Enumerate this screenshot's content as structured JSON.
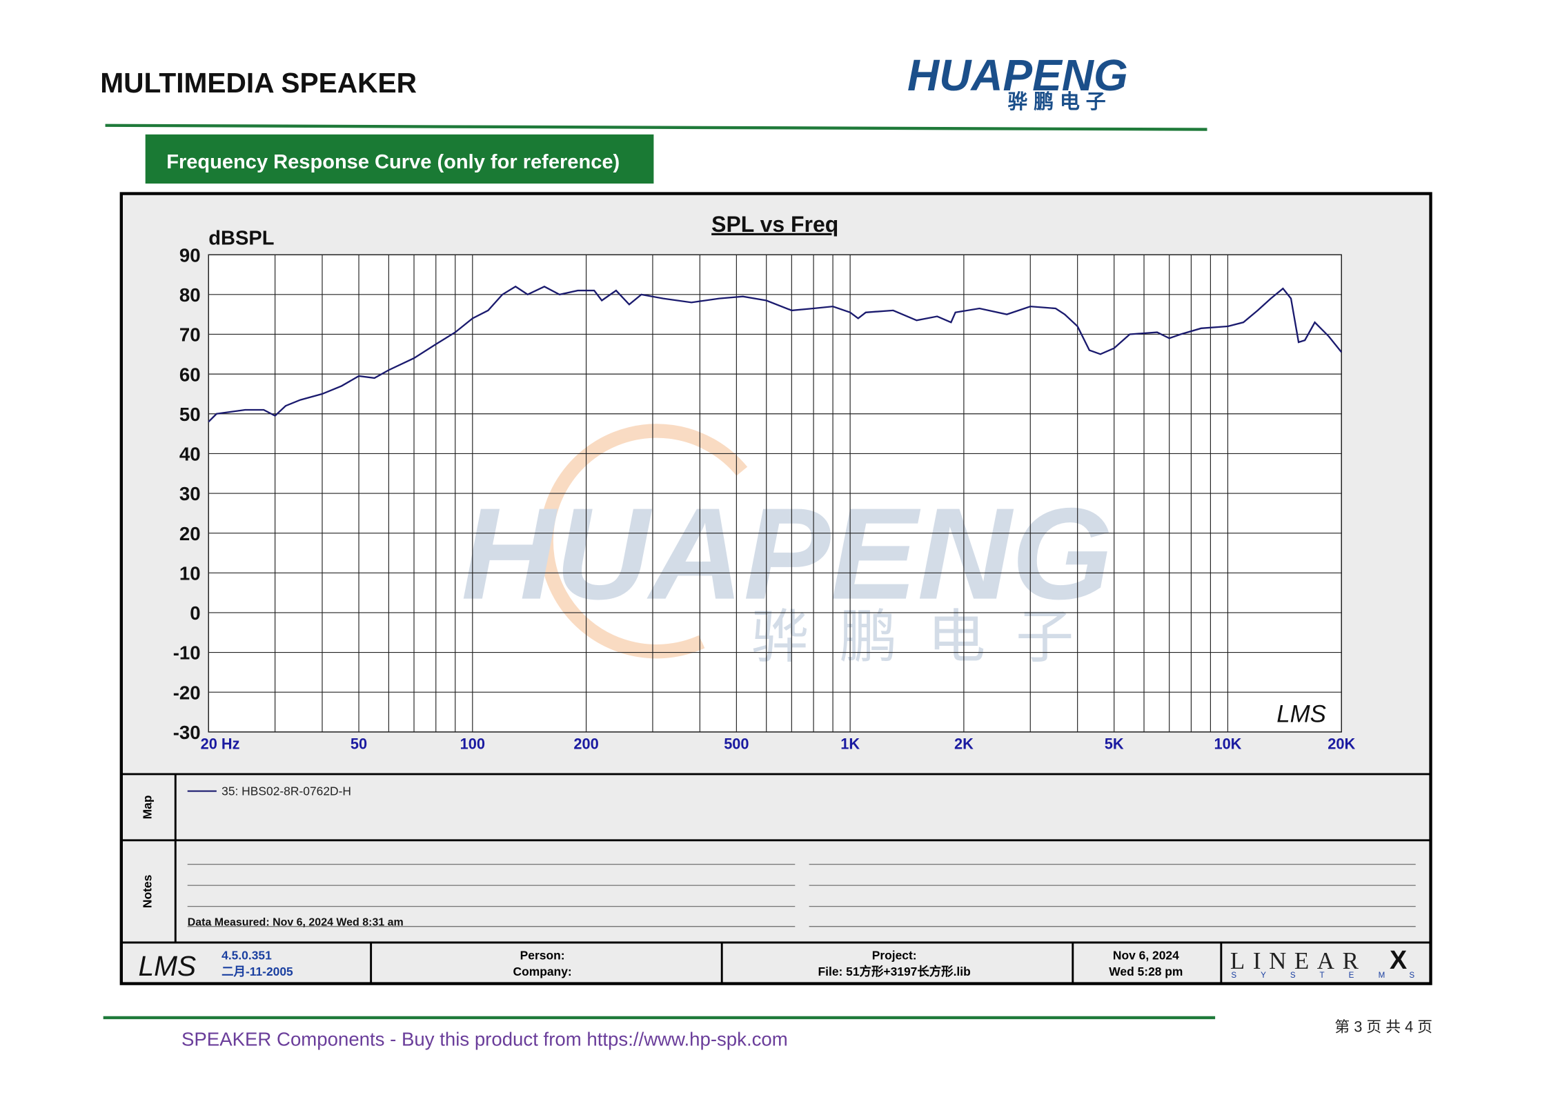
{
  "header": {
    "title": "MULTIMEDIA SPEAKER",
    "logo": "HUAPENG",
    "logo_cn": "骅鹏电子"
  },
  "section_label": "Frequency Response Curve (only for reference)",
  "chart_data": {
    "type": "line",
    "title": "SPL vs Freq",
    "y_label": "dBSPL",
    "x_scale": "log",
    "grid": true,
    "xlim": [
      20,
      20000
    ],
    "ylim": [
      -30,
      90
    ],
    "xticks": [
      {
        "value": 20,
        "label": "20  Hz"
      },
      50,
      100,
      200,
      500,
      {
        "value": 1000,
        "label": "1K"
      },
      {
        "value": 2000,
        "label": "2K"
      },
      {
        "value": 5000,
        "label": "5K"
      },
      {
        "value": 10000,
        "label": "10K"
      },
      {
        "value": 20000,
        "label": "20K"
      }
    ],
    "xminorticks": [
      30,
      40,
      60,
      70,
      80,
      90,
      300,
      400,
      600,
      700,
      800,
      900,
      3000,
      4000,
      6000,
      7000,
      8000,
      9000
    ],
    "yticks": [
      90,
      80,
      70,
      60,
      50,
      40,
      30,
      20,
      10,
      0,
      -10,
      -20,
      -30
    ],
    "x": [
      20,
      21,
      25,
      28,
      30,
      32,
      35,
      40,
      45,
      50,
      55,
      60,
      70,
      80,
      90,
      100,
      110,
      120,
      130,
      140,
      155,
      170,
      190,
      210,
      220,
      240,
      260,
      280,
      320,
      380,
      450,
      520,
      600,
      700,
      800,
      900,
      1000,
      1050,
      1100,
      1300,
      1500,
      1700,
      1850,
      1900,
      2200,
      2600,
      3000,
      3500,
      3700,
      4000,
      4300,
      4600,
      5000,
      5500,
      6500,
      7000,
      7500,
      8500,
      10000,
      11000,
      12000,
      13000,
      14000,
      14700,
      15400,
      16000,
      17000,
      18500,
      20000
    ],
    "series": [
      {
        "name": "35: HBS02-8R-0762D-H",
        "color": "#1a1a6e",
        "values": [
          48,
          50,
          51,
          51,
          49.5,
          52,
          53.5,
          55,
          57,
          59.5,
          59,
          61,
          64,
          67.5,
          70.5,
          74,
          76,
          80,
          82,
          80,
          82,
          80,
          81,
          81,
          78.5,
          81,
          77.5,
          80,
          79,
          78,
          79,
          79.5,
          78.5,
          76,
          76.5,
          77,
          75.5,
          74,
          75.5,
          76,
          73.5,
          74.5,
          73,
          75.5,
          76.5,
          75,
          77,
          76.5,
          75,
          72,
          66,
          65,
          66.5,
          70,
          70.5,
          69,
          70,
          71.5,
          72,
          73,
          76,
          79,
          81.5,
          79,
          68,
          68.5,
          73,
          69.5,
          65.5
        ]
      }
    ],
    "watermark": "HUAPENG",
    "watermark_cn": "骅鹏电子",
    "plot_logo": "LMS"
  },
  "map": {
    "label": "Map"
  },
  "notes": {
    "label": "Notes",
    "measured": "Data Measured: Nov  6, 2024  Wed  8:31 am"
  },
  "info_bar": {
    "logo": "LMS",
    "version": "4.5.0.351",
    "build_date": "二月-11-2005",
    "person": "Person:",
    "company": "Company:",
    "project": "Project:",
    "file": "File: 51方形+3197长方形.lib",
    "date": "Nov  6, 2024",
    "time": "Wed  5:28 pm",
    "brand": "LINEAR",
    "brand_x": "X",
    "brand_sub": "S Y S T E M S"
  },
  "footer": {
    "text": "SPEAKER Components - Buy this product from  https://www.hp-spk.com",
    "page": "第 3 页 共 4 页"
  }
}
